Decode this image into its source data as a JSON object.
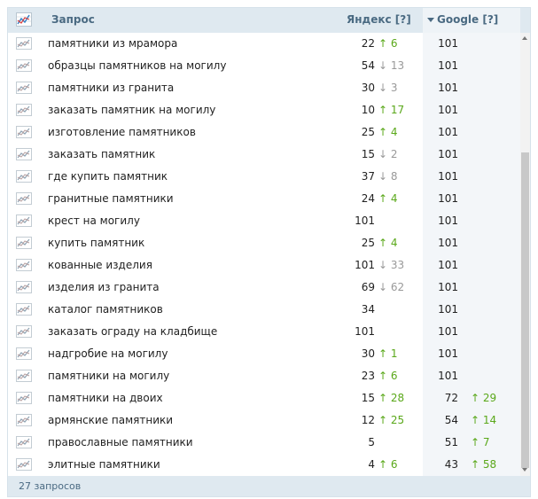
{
  "header": {
    "query_label": "Запрос",
    "yandex_label": "Яндекс [?]",
    "google_label": "Google [?]"
  },
  "rows": [
    {
      "query": "памятники из мрамора",
      "yandex": "22",
      "yandex_delta": "↑ 6",
      "yandex_dir": "up",
      "google": "101",
      "google_delta": "",
      "google_dir": ""
    },
    {
      "query": "образцы памятников на могилу",
      "yandex": "54",
      "yandex_delta": "↓ 13",
      "yandex_dir": "down",
      "google": "101",
      "google_delta": "",
      "google_dir": ""
    },
    {
      "query": "памятники из гранита",
      "yandex": "30",
      "yandex_delta": "↓ 3",
      "yandex_dir": "down",
      "google": "101",
      "google_delta": "",
      "google_dir": ""
    },
    {
      "query": "заказать памятник на могилу",
      "yandex": "10",
      "yandex_delta": "↑ 17",
      "yandex_dir": "up",
      "google": "101",
      "google_delta": "",
      "google_dir": ""
    },
    {
      "query": "изготовление памятников",
      "yandex": "25",
      "yandex_delta": "↑ 4",
      "yandex_dir": "up",
      "google": "101",
      "google_delta": "",
      "google_dir": ""
    },
    {
      "query": "заказать памятник",
      "yandex": "15",
      "yandex_delta": "↓ 2",
      "yandex_dir": "down",
      "google": "101",
      "google_delta": "",
      "google_dir": ""
    },
    {
      "query": "где купить памятник",
      "yandex": "37",
      "yandex_delta": "↓ 8",
      "yandex_dir": "down",
      "google": "101",
      "google_delta": "",
      "google_dir": ""
    },
    {
      "query": "гранитные памятники",
      "yandex": "24",
      "yandex_delta": "↑ 4",
      "yandex_dir": "up",
      "google": "101",
      "google_delta": "",
      "google_dir": ""
    },
    {
      "query": "крест на могилу",
      "yandex": "101",
      "yandex_delta": "",
      "yandex_dir": "",
      "google": "101",
      "google_delta": "",
      "google_dir": ""
    },
    {
      "query": "купить памятник",
      "yandex": "25",
      "yandex_delta": "↑ 4",
      "yandex_dir": "up",
      "google": "101",
      "google_delta": "",
      "google_dir": ""
    },
    {
      "query": "кованные изделия",
      "yandex": "101",
      "yandex_delta": "↓ 33",
      "yandex_dir": "down",
      "google": "101",
      "google_delta": "",
      "google_dir": ""
    },
    {
      "query": "изделия из гранита",
      "yandex": "69",
      "yandex_delta": "↓ 62",
      "yandex_dir": "down",
      "google": "101",
      "google_delta": "",
      "google_dir": ""
    },
    {
      "query": "каталог памятников",
      "yandex": "34",
      "yandex_delta": "",
      "yandex_dir": "",
      "google": "101",
      "google_delta": "",
      "google_dir": ""
    },
    {
      "query": "заказать ограду на кладбище",
      "yandex": "101",
      "yandex_delta": "",
      "yandex_dir": "",
      "google": "101",
      "google_delta": "",
      "google_dir": ""
    },
    {
      "query": "надгробие на могилу",
      "yandex": "30",
      "yandex_delta": "↑ 1",
      "yandex_dir": "up",
      "google": "101",
      "google_delta": "",
      "google_dir": ""
    },
    {
      "query": "памятники на могилу",
      "yandex": "23",
      "yandex_delta": "↑ 6",
      "yandex_dir": "up",
      "google": "101",
      "google_delta": "",
      "google_dir": ""
    },
    {
      "query": "памятники на двоих",
      "yandex": "15",
      "yandex_delta": "↑ 28",
      "yandex_dir": "up",
      "google": "72",
      "google_delta": "↑ 29",
      "google_dir": "up"
    },
    {
      "query": "армянские памятники",
      "yandex": "12",
      "yandex_delta": "↑ 25",
      "yandex_dir": "up",
      "google": "54",
      "google_delta": "↑ 14",
      "google_dir": "up"
    },
    {
      "query": "православные памятники",
      "yandex": "5",
      "yandex_delta": "",
      "yandex_dir": "",
      "google": "51",
      "google_delta": "↑ 7",
      "google_dir": "up"
    },
    {
      "query": "элитные памятники",
      "yandex": "4",
      "yandex_delta": "↑ 6",
      "yandex_dir": "up",
      "google": "43",
      "google_delta": "↑ 58",
      "google_dir": "up"
    }
  ],
  "footer": {
    "count_label": "27 запросов"
  },
  "icons": {
    "header": "chart-icon",
    "row": "chart-icon"
  },
  "colors": {
    "header_bg": "#dfe9f0",
    "up": "#5aa81a",
    "down": "#999999"
  }
}
